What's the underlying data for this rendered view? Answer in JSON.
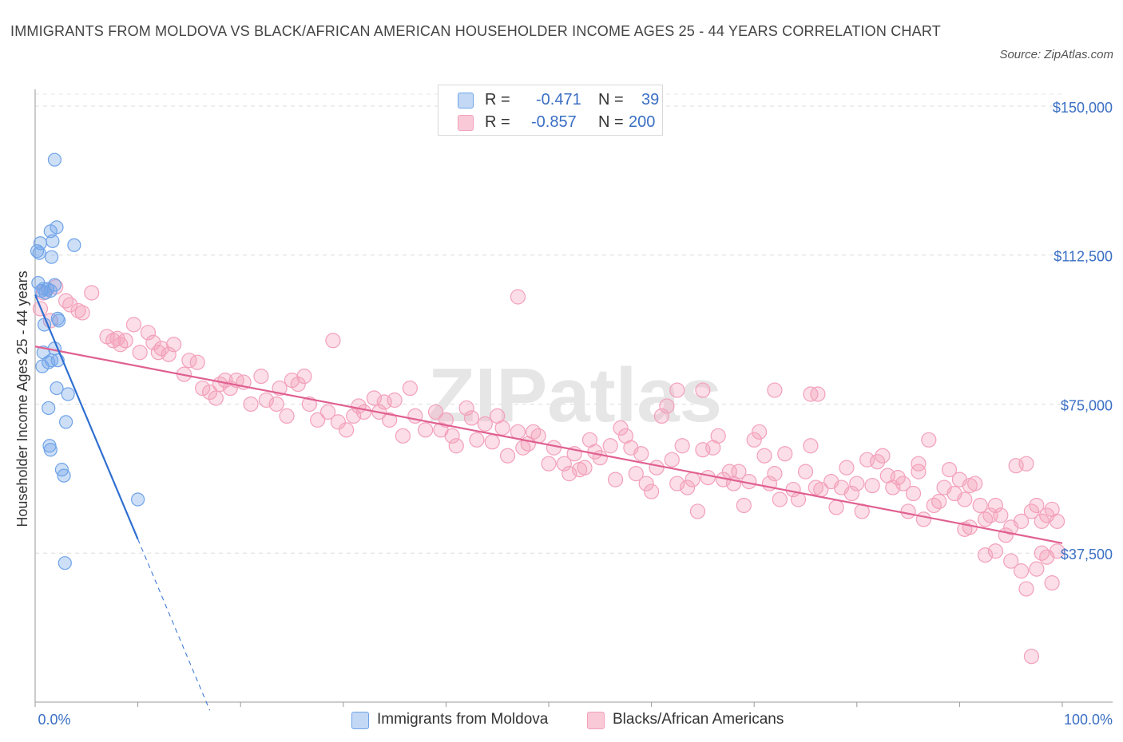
{
  "title": "IMMIGRANTS FROM MOLDOVA VS BLACK/AFRICAN AMERICAN HOUSEHOLDER INCOME AGES 25 - 44 YEARS CORRELATION CHART",
  "source": "Source: ZipAtlas.com",
  "watermark": "ZIPatlas",
  "colors": {
    "blue": "#6fa3e8",
    "blue_line": "#2f6fd0",
    "pink": "#f3a0bb",
    "pink_line": "#e06090",
    "accent_text": "#3a6fc4"
  },
  "legend": {
    "rows": [
      {
        "r_label": "R =",
        "r_value": "-0.471",
        "n_label": "N =",
        "n_value": "39"
      },
      {
        "r_label": "R =",
        "r_value": "-0.857",
        "n_label": "N =",
        "n_value": "200"
      }
    ]
  },
  "bottom_legend": [
    "Immigrants from Moldova",
    "Blacks/African Americans"
  ],
  "chart_data": {
    "type": "scatter",
    "title": "IMMIGRANTS FROM MOLDOVA VS BLACK/AFRICAN AMERICAN HOUSEHOLDER INCOME AGES 25 - 44 YEARS CORRELATION CHART",
    "xlabel": "",
    "ylabel": "Householder Income Ages 25 - 44 years",
    "x_tick_labels": [
      "0.0%",
      "100.0%"
    ],
    "y_tick_labels": [
      "$150,000",
      "$112,500",
      "$75,000",
      "$37,500"
    ],
    "y_ticks": [
      150000,
      112500,
      75000,
      37500
    ],
    "xlim": [
      0,
      100
    ],
    "ylim": [
      0,
      153000
    ],
    "legend_position": "top-center",
    "series": [
      {
        "name": "Immigrants from Moldova",
        "color": "#6fa3e8",
        "trend": {
          "x0": 0,
          "y0": 102500,
          "x1": 10,
          "y1": 41000,
          "dashed_to_x": 17
        },
        "points": [
          [
            1.9,
            136500
          ],
          [
            2.1,
            119500
          ],
          [
            1.5,
            118500
          ],
          [
            1.7,
            116000
          ],
          [
            0.5,
            115500
          ],
          [
            3.8,
            115000
          ],
          [
            0.2,
            113500
          ],
          [
            0.4,
            113000
          ],
          [
            1.6,
            112000
          ],
          [
            0.3,
            105500
          ],
          [
            1.9,
            105000
          ],
          [
            1.2,
            104000
          ],
          [
            0.8,
            104000
          ],
          [
            0.6,
            103500
          ],
          [
            1.5,
            103500
          ],
          [
            1.0,
            103000
          ],
          [
            2.2,
            96500
          ],
          [
            0.9,
            95000
          ],
          [
            2.3,
            96000
          ],
          [
            0.8,
            88000
          ],
          [
            1.9,
            89000
          ],
          [
            1.6,
            86000
          ],
          [
            2.2,
            86000
          ],
          [
            0.7,
            84500
          ],
          [
            1.3,
            85500
          ],
          [
            2.1,
            79000
          ],
          [
            3.2,
            77500
          ],
          [
            1.3,
            74000
          ],
          [
            3.0,
            70500
          ],
          [
            1.4,
            64500
          ],
          [
            1.5,
            63500
          ],
          [
            2.6,
            58500
          ],
          [
            2.8,
            57000
          ],
          [
            10.0,
            51000
          ],
          [
            2.9,
            35000
          ]
        ]
      },
      {
        "name": "Blacks/African Americans",
        "color": "#f3a0bb",
        "trend": {
          "x0": 0,
          "y0": 89500,
          "x1": 100,
          "y1": 40000
        },
        "points": [
          [
            0.5,
            99000
          ],
          [
            0.8,
            103000
          ],
          [
            1.5,
            96000
          ],
          [
            2.0,
            104500
          ],
          [
            3.0,
            101000
          ],
          [
            3.4,
            100000
          ],
          [
            4.2,
            98500
          ],
          [
            4.6,
            98000
          ],
          [
            5.5,
            103000
          ],
          [
            7.0,
            92000
          ],
          [
            7.6,
            91000
          ],
          [
            8.0,
            91500
          ],
          [
            8.3,
            90000
          ],
          [
            8.8,
            91000
          ],
          [
            9.6,
            95000
          ],
          [
            10.2,
            88000
          ],
          [
            11.0,
            93000
          ],
          [
            11.5,
            90500
          ],
          [
            12.3,
            89000
          ],
          [
            12.0,
            88000
          ],
          [
            13.0,
            87500
          ],
          [
            13.5,
            90000
          ],
          [
            14.5,
            82500
          ],
          [
            15.0,
            86000
          ],
          [
            15.8,
            85500
          ],
          [
            16.3,
            79000
          ],
          [
            17.0,
            78000
          ],
          [
            17.6,
            76500
          ],
          [
            18.0,
            80000
          ],
          [
            18.5,
            81000
          ],
          [
            19.0,
            79000
          ],
          [
            19.6,
            81000
          ],
          [
            20.3,
            80500
          ],
          [
            21.0,
            75000
          ],
          [
            22.0,
            82000
          ],
          [
            22.5,
            76000
          ],
          [
            23.5,
            75000
          ],
          [
            23.8,
            79000
          ],
          [
            24.5,
            72000
          ],
          [
            25.0,
            81000
          ],
          [
            25.6,
            80000
          ],
          [
            26.2,
            82000
          ],
          [
            26.7,
            75000
          ],
          [
            27.5,
            71000
          ],
          [
            28.5,
            73000
          ],
          [
            29.0,
            91000
          ],
          [
            29.5,
            70500
          ],
          [
            30.3,
            68500
          ],
          [
            31.0,
            72000
          ],
          [
            31.5,
            74500
          ],
          [
            32.0,
            73000
          ],
          [
            33.0,
            76500
          ],
          [
            33.5,
            73000
          ],
          [
            34.0,
            75500
          ],
          [
            34.5,
            71000
          ],
          [
            35.0,
            76000
          ],
          [
            35.8,
            67000
          ],
          [
            36.5,
            79000
          ],
          [
            37.0,
            72000
          ],
          [
            38.0,
            68500
          ],
          [
            39.0,
            73000
          ],
          [
            39.5,
            68500
          ],
          [
            40.0,
            71000
          ],
          [
            40.6,
            67000
          ],
          [
            41.0,
            64500
          ],
          [
            42.0,
            74000
          ],
          [
            42.5,
            71500
          ],
          [
            43.0,
            66000
          ],
          [
            43.8,
            70000
          ],
          [
            44.5,
            65500
          ],
          [
            45.0,
            72000
          ],
          [
            45.5,
            69000
          ],
          [
            46.0,
            62000
          ],
          [
            47.0,
            68000
          ],
          [
            47.5,
            64000
          ],
          [
            48.0,
            65000
          ],
          [
            48.5,
            68000
          ],
          [
            49.0,
            67000
          ],
          [
            50.0,
            60000
          ],
          [
            50.5,
            64000
          ],
          [
            51.5,
            60000
          ],
          [
            52.0,
            57500
          ],
          [
            52.5,
            62500
          ],
          [
            53.0,
            58500
          ],
          [
            53.5,
            59000
          ],
          [
            54.0,
            66000
          ],
          [
            54.5,
            63000
          ],
          [
            55.0,
            61500
          ],
          [
            56.0,
            64500
          ],
          [
            56.5,
            56000
          ],
          [
            57.0,
            69000
          ],
          [
            57.5,
            67000
          ],
          [
            58.0,
            64000
          ],
          [
            58.5,
            57500
          ],
          [
            59.0,
            62500
          ],
          [
            59.5,
            55000
          ],
          [
            60.0,
            53000
          ],
          [
            60.5,
            59000
          ],
          [
            61.0,
            72000
          ],
          [
            61.5,
            74500
          ],
          [
            62.0,
            61000
          ],
          [
            62.5,
            55000
          ],
          [
            63.0,
            64500
          ],
          [
            63.5,
            54000
          ],
          [
            64.0,
            56000
          ],
          [
            64.5,
            48000
          ],
          [
            65.0,
            63500
          ],
          [
            65.5,
            56500
          ],
          [
            66.0,
            64000
          ],
          [
            66.5,
            67000
          ],
          [
            67.0,
            56000
          ],
          [
            67.6,
            58000
          ],
          [
            68.0,
            55000
          ],
          [
            68.5,
            58000
          ],
          [
            69.0,
            49500
          ],
          [
            69.5,
            55500
          ],
          [
            70.0,
            66000
          ],
          [
            70.5,
            68000
          ],
          [
            71.0,
            62000
          ],
          [
            71.5,
            55000
          ],
          [
            72.0,
            57500
          ],
          [
            72.5,
            51000
          ],
          [
            73.0,
            62500
          ],
          [
            73.8,
            53500
          ],
          [
            74.3,
            51000
          ],
          [
            75.0,
            58000
          ],
          [
            75.5,
            64500
          ],
          [
            76.0,
            54000
          ],
          [
            76.5,
            53500
          ],
          [
            77.5,
            55500
          ],
          [
            78.0,
            49000
          ],
          [
            78.5,
            54000
          ],
          [
            79.0,
            59000
          ],
          [
            79.5,
            52500
          ],
          [
            80.0,
            55000
          ],
          [
            80.5,
            48000
          ],
          [
            81.0,
            61000
          ],
          [
            81.5,
            54500
          ],
          [
            82.0,
            60500
          ],
          [
            82.5,
            62000
          ],
          [
            83.0,
            57000
          ],
          [
            83.5,
            54000
          ],
          [
            84.0,
            56500
          ],
          [
            84.5,
            55000
          ],
          [
            85.0,
            48000
          ],
          [
            85.5,
            52500
          ],
          [
            86.0,
            58000
          ],
          [
            86.5,
            46000
          ],
          [
            87.0,
            66000
          ],
          [
            87.5,
            49500
          ],
          [
            88.0,
            50500
          ],
          [
            88.5,
            54000
          ],
          [
            89.0,
            58500
          ],
          [
            89.5,
            52500
          ],
          [
            90.0,
            56000
          ],
          [
            90.5,
            51000
          ],
          [
            91.0,
            54500
          ],
          [
            91.5,
            55000
          ],
          [
            92.0,
            49500
          ],
          [
            92.5,
            46000
          ],
          [
            93.0,
            47000
          ],
          [
            93.5,
            49500
          ],
          [
            94.0,
            47000
          ],
          [
            94.5,
            42000
          ],
          [
            95.0,
            44000
          ],
          [
            95.5,
            59500
          ],
          [
            96.0,
            45500
          ],
          [
            96.5,
            60000
          ],
          [
            97.0,
            48000
          ],
          [
            97.5,
            49500
          ],
          [
            98.0,
            45500
          ],
          [
            98.5,
            47000
          ],
          [
            99.0,
            48500
          ],
          [
            99.5,
            45500
          ],
          [
            47.0,
            102000
          ],
          [
            62.5,
            78500
          ],
          [
            75.5,
            77500
          ],
          [
            76.2,
            77500
          ],
          [
            72.0,
            78500
          ],
          [
            65.0,
            78500
          ],
          [
            86.0,
            60000
          ],
          [
            90.5,
            43500
          ],
          [
            91.0,
            44000
          ],
          [
            92.5,
            37000
          ],
          [
            93.5,
            38000
          ],
          [
            95.0,
            35500
          ],
          [
            96.5,
            28500
          ],
          [
            96.0,
            33000
          ],
          [
            97.5,
            33500
          ],
          [
            98.0,
            37500
          ],
          [
            98.5,
            36500
          ],
          [
            99.0,
            30000
          ],
          [
            99.5,
            38000
          ],
          [
            97.0,
            11500
          ]
        ]
      }
    ]
  }
}
